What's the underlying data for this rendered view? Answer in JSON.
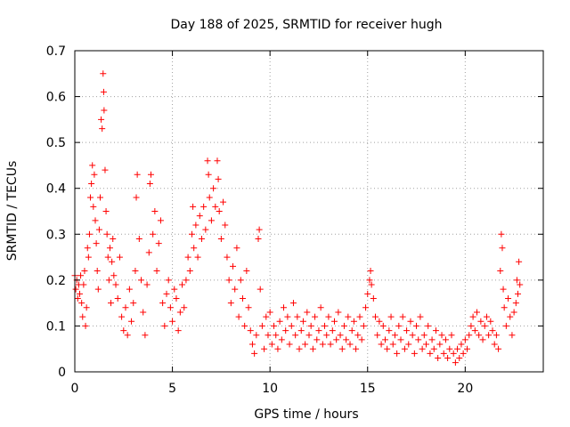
{
  "chart_data": {
    "type": "scatter",
    "title": "Day 188 of 2025, SRMTID for receiver hugh",
    "xlabel": "GPS time / hours",
    "ylabel": "SRMTID / TECUs",
    "xlim": [
      0,
      24
    ],
    "ylim": [
      0,
      0.7
    ],
    "x_ticks": [
      0,
      5,
      10,
      15,
      20
    ],
    "x_tick_labels": [
      "0",
      "5",
      "10",
      "15",
      "20"
    ],
    "y_ticks": [
      0,
      0.1,
      0.2,
      0.3,
      0.4,
      0.5,
      0.6,
      0.7
    ],
    "y_tick_labels": [
      "0",
      "0.1",
      "0.2",
      "0.3",
      "0.4",
      "0.5",
      "0.6",
      "0.7"
    ],
    "grid": true,
    "marker": "plus",
    "color": "#ff0000",
    "series": [
      {
        "name": "SRMTID",
        "points": [
          [
            0.0,
            0.21
          ],
          [
            0.05,
            0.18
          ],
          [
            0.1,
            0.2
          ],
          [
            0.15,
            0.16
          ],
          [
            0.2,
            0.19
          ],
          [
            0.25,
            0.17
          ],
          [
            0.3,
            0.21
          ],
          [
            0.35,
            0.15
          ],
          [
            0.4,
            0.12
          ],
          [
            0.45,
            0.19
          ],
          [
            0.5,
            0.22
          ],
          [
            0.55,
            0.1
          ],
          [
            0.6,
            0.14
          ],
          [
            0.65,
            0.27
          ],
          [
            0.7,
            0.25
          ],
          [
            0.75,
            0.3
          ],
          [
            0.8,
            0.38
          ],
          [
            0.85,
            0.41
          ],
          [
            0.9,
            0.45
          ],
          [
            0.95,
            0.36
          ],
          [
            1.0,
            0.43
          ],
          [
            1.05,
            0.33
          ],
          [
            1.1,
            0.28
          ],
          [
            1.15,
            0.22
          ],
          [
            1.2,
            0.18
          ],
          [
            1.25,
            0.31
          ],
          [
            1.3,
            0.38
          ],
          [
            1.35,
            0.55
          ],
          [
            1.4,
            0.53
          ],
          [
            1.45,
            0.65
          ],
          [
            1.48,
            0.61
          ],
          [
            1.5,
            0.57
          ],
          [
            1.55,
            0.44
          ],
          [
            1.6,
            0.35
          ],
          [
            1.65,
            0.3
          ],
          [
            1.7,
            0.25
          ],
          [
            1.75,
            0.2
          ],
          [
            1.8,
            0.27
          ],
          [
            1.85,
            0.15
          ],
          [
            1.9,
            0.24
          ],
          [
            1.95,
            0.29
          ],
          [
            2.0,
            0.21
          ],
          [
            2.1,
            0.19
          ],
          [
            2.2,
            0.16
          ],
          [
            2.3,
            0.25
          ],
          [
            2.4,
            0.12
          ],
          [
            2.5,
            0.09
          ],
          [
            2.6,
            0.14
          ],
          [
            2.7,
            0.08
          ],
          [
            2.8,
            0.18
          ],
          [
            2.9,
            0.11
          ],
          [
            3.0,
            0.15
          ],
          [
            3.1,
            0.22
          ],
          [
            3.15,
            0.38
          ],
          [
            3.2,
            0.43
          ],
          [
            3.3,
            0.29
          ],
          [
            3.4,
            0.2
          ],
          [
            3.5,
            0.13
          ],
          [
            3.6,
            0.08
          ],
          [
            3.7,
            0.19
          ],
          [
            3.8,
            0.26
          ],
          [
            3.85,
            0.41
          ],
          [
            3.9,
            0.43
          ],
          [
            4.0,
            0.3
          ],
          [
            4.1,
            0.35
          ],
          [
            4.2,
            0.22
          ],
          [
            4.3,
            0.28
          ],
          [
            4.4,
            0.33
          ],
          [
            4.5,
            0.15
          ],
          [
            4.6,
            0.1
          ],
          [
            4.7,
            0.17
          ],
          [
            4.8,
            0.2
          ],
          [
            4.9,
            0.14
          ],
          [
            5.0,
            0.11
          ],
          [
            5.1,
            0.18
          ],
          [
            5.2,
            0.16
          ],
          [
            5.3,
            0.09
          ],
          [
            5.4,
            0.13
          ],
          [
            5.5,
            0.19
          ],
          [
            5.6,
            0.14
          ],
          [
            5.7,
            0.2
          ],
          [
            5.8,
            0.25
          ],
          [
            5.9,
            0.22
          ],
          [
            6.0,
            0.3
          ],
          [
            6.05,
            0.36
          ],
          [
            6.1,
            0.27
          ],
          [
            6.2,
            0.32
          ],
          [
            6.3,
            0.25
          ],
          [
            6.4,
            0.34
          ],
          [
            6.5,
            0.29
          ],
          [
            6.6,
            0.36
          ],
          [
            6.7,
            0.31
          ],
          [
            6.8,
            0.46
          ],
          [
            6.85,
            0.43
          ],
          [
            6.9,
            0.38
          ],
          [
            7.0,
            0.33
          ],
          [
            7.1,
            0.4
          ],
          [
            7.2,
            0.36
          ],
          [
            7.3,
            0.46
          ],
          [
            7.35,
            0.42
          ],
          [
            7.4,
            0.35
          ],
          [
            7.5,
            0.29
          ],
          [
            7.6,
            0.37
          ],
          [
            7.7,
            0.32
          ],
          [
            7.8,
            0.25
          ],
          [
            7.9,
            0.2
          ],
          [
            8.0,
            0.15
          ],
          [
            8.1,
            0.23
          ],
          [
            8.2,
            0.18
          ],
          [
            8.3,
            0.27
          ],
          [
            8.4,
            0.12
          ],
          [
            8.5,
            0.2
          ],
          [
            8.6,
            0.16
          ],
          [
            8.7,
            0.1
          ],
          [
            8.8,
            0.22
          ],
          [
            8.9,
            0.14
          ],
          [
            9.0,
            0.09
          ],
          [
            9.1,
            0.06
          ],
          [
            9.2,
            0.04
          ],
          [
            9.3,
            0.08
          ],
          [
            9.4,
            0.29
          ],
          [
            9.45,
            0.31
          ],
          [
            9.5,
            0.18
          ],
          [
            9.6,
            0.1
          ],
          [
            9.7,
            0.05
          ],
          [
            9.8,
            0.12
          ],
          [
            9.9,
            0.08
          ],
          [
            10.0,
            0.13
          ],
          [
            10.1,
            0.06
          ],
          [
            10.2,
            0.1
          ],
          [
            10.3,
            0.08
          ],
          [
            10.4,
            0.05
          ],
          [
            10.5,
            0.11
          ],
          [
            10.6,
            0.07
          ],
          [
            10.7,
            0.14
          ],
          [
            10.8,
            0.09
          ],
          [
            10.9,
            0.12
          ],
          [
            11.0,
            0.06
          ],
          [
            11.1,
            0.1
          ],
          [
            11.2,
            0.15
          ],
          [
            11.3,
            0.08
          ],
          [
            11.4,
            0.12
          ],
          [
            11.5,
            0.05
          ],
          [
            11.6,
            0.09
          ],
          [
            11.7,
            0.11
          ],
          [
            11.8,
            0.06
          ],
          [
            11.9,
            0.13
          ],
          [
            12.0,
            0.08
          ],
          [
            12.1,
            0.1
          ],
          [
            12.2,
            0.05
          ],
          [
            12.3,
            0.12
          ],
          [
            12.4,
            0.07
          ],
          [
            12.5,
            0.09
          ],
          [
            12.6,
            0.14
          ],
          [
            12.7,
            0.06
          ],
          [
            12.8,
            0.1
          ],
          [
            12.9,
            0.08
          ],
          [
            13.0,
            0.12
          ],
          [
            13.1,
            0.06
          ],
          [
            13.2,
            0.09
          ],
          [
            13.3,
            0.11
          ],
          [
            13.4,
            0.07
          ],
          [
            13.5,
            0.13
          ],
          [
            13.6,
            0.08
          ],
          [
            13.7,
            0.05
          ],
          [
            13.8,
            0.1
          ],
          [
            13.9,
            0.07
          ],
          [
            14.0,
            0.12
          ],
          [
            14.1,
            0.06
          ],
          [
            14.2,
            0.09
          ],
          [
            14.3,
            0.11
          ],
          [
            14.4,
            0.05
          ],
          [
            14.5,
            0.08
          ],
          [
            14.6,
            0.12
          ],
          [
            14.7,
            0.07
          ],
          [
            14.8,
            0.1
          ],
          [
            14.9,
            0.14
          ],
          [
            15.0,
            0.17
          ],
          [
            15.1,
            0.2
          ],
          [
            15.15,
            0.22
          ],
          [
            15.2,
            0.19
          ],
          [
            15.3,
            0.16
          ],
          [
            15.4,
            0.12
          ],
          [
            15.5,
            0.08
          ],
          [
            15.6,
            0.11
          ],
          [
            15.7,
            0.06
          ],
          [
            15.8,
            0.1
          ],
          [
            15.9,
            0.07
          ],
          [
            16.0,
            0.05
          ],
          [
            16.1,
            0.09
          ],
          [
            16.2,
            0.12
          ],
          [
            16.3,
            0.06
          ],
          [
            16.4,
            0.08
          ],
          [
            16.5,
            0.04
          ],
          [
            16.6,
            0.1
          ],
          [
            16.7,
            0.07
          ],
          [
            16.8,
            0.12
          ],
          [
            16.9,
            0.05
          ],
          [
            17.0,
            0.09
          ],
          [
            17.1,
            0.06
          ],
          [
            17.2,
            0.11
          ],
          [
            17.3,
            0.08
          ],
          [
            17.4,
            0.04
          ],
          [
            17.5,
            0.1
          ],
          [
            17.6,
            0.07
          ],
          [
            17.7,
            0.12
          ],
          [
            17.8,
            0.05
          ],
          [
            17.9,
            0.08
          ],
          [
            18.0,
            0.06
          ],
          [
            18.1,
            0.1
          ],
          [
            18.2,
            0.04
          ],
          [
            18.3,
            0.07
          ],
          [
            18.4,
            0.05
          ],
          [
            18.5,
            0.09
          ],
          [
            18.6,
            0.03
          ],
          [
            18.7,
            0.06
          ],
          [
            18.8,
            0.08
          ],
          [
            18.9,
            0.04
          ],
          [
            19.0,
            0.07
          ],
          [
            19.1,
            0.03
          ],
          [
            19.2,
            0.05
          ],
          [
            19.3,
            0.08
          ],
          [
            19.4,
            0.04
          ],
          [
            19.5,
            0.02
          ],
          [
            19.6,
            0.05
          ],
          [
            19.7,
            0.03
          ],
          [
            19.8,
            0.06
          ],
          [
            19.9,
            0.04
          ],
          [
            20.0,
            0.07
          ],
          [
            20.1,
            0.05
          ],
          [
            20.2,
            0.08
          ],
          [
            20.3,
            0.1
          ],
          [
            20.4,
            0.12
          ],
          [
            20.5,
            0.09
          ],
          [
            20.6,
            0.13
          ],
          [
            20.7,
            0.08
          ],
          [
            20.8,
            0.11
          ],
          [
            20.9,
            0.07
          ],
          [
            21.0,
            0.1
          ],
          [
            21.1,
            0.12
          ],
          [
            21.2,
            0.08
          ],
          [
            21.3,
            0.11
          ],
          [
            21.4,
            0.09
          ],
          [
            21.5,
            0.06
          ],
          [
            21.6,
            0.08
          ],
          [
            21.7,
            0.05
          ],
          [
            21.8,
            0.22
          ],
          [
            21.85,
            0.3
          ],
          [
            21.9,
            0.27
          ],
          [
            21.95,
            0.18
          ],
          [
            22.0,
            0.14
          ],
          [
            22.1,
            0.1
          ],
          [
            22.2,
            0.16
          ],
          [
            22.3,
            0.12
          ],
          [
            22.4,
            0.08
          ],
          [
            22.5,
            0.13
          ],
          [
            22.6,
            0.15
          ],
          [
            22.65,
            0.2
          ],
          [
            22.7,
            0.17
          ],
          [
            22.75,
            0.24
          ],
          [
            22.8,
            0.19
          ]
        ]
      }
    ]
  }
}
